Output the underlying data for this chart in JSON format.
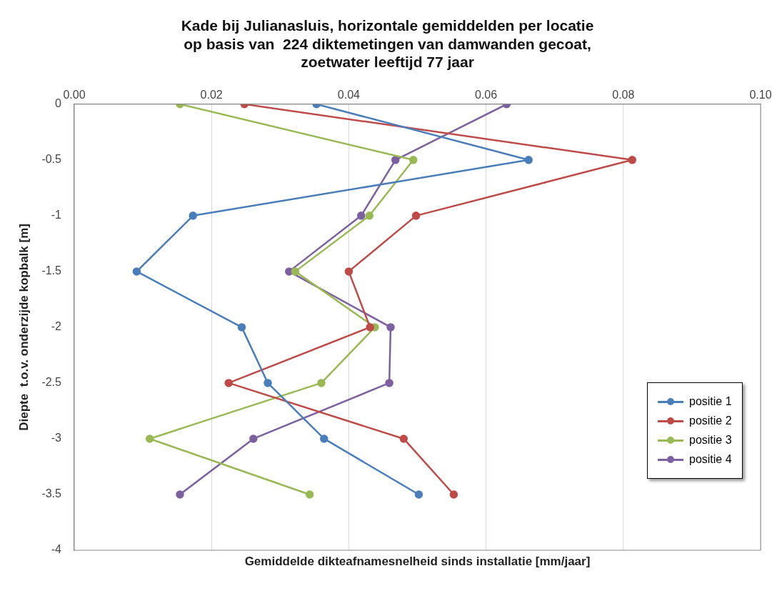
{
  "chart_data": {
    "type": "line",
    "title": "Kade bij Julianasluis, horizontale gemiddelden per locatie\nop basis van  224 diktemetingen van damwanden gecoat,\nzoetwater leeftijd 77 jaar",
    "xlabel": "Gemiddelde dikteafnamesnelheid sinds installatie [mm/jaar]",
    "ylabel": "Diepte  t.o.v. onderzijde kopbalk [m]",
    "series": [
      {
        "name": "positie 1",
        "color": "#4a7ebb",
        "x": [
          0.0353,
          0.0662,
          0.0173,
          0.0091,
          0.0244,
          0.0282,
          0.0364,
          0.0502
        ],
        "values": [
          0,
          -0.5,
          -1,
          -1.5,
          -2,
          -2.5,
          -3,
          -3.5
        ]
      },
      {
        "name": "positie 2",
        "color": "#be4b48",
        "x": [
          0.0248,
          0.0813,
          0.0498,
          0.04,
          0.0431,
          0.0225,
          0.048,
          0.0553
        ],
        "values": [
          0,
          -0.5,
          -1,
          -1.5,
          -2,
          -2.5,
          -3,
          -3.5
        ]
      },
      {
        "name": "positie 3",
        "color": "#98b954",
        "x": [
          0.0154,
          0.0494,
          0.043,
          0.0322,
          0.0438,
          0.036,
          0.011,
          0.0343
        ],
        "values": [
          0,
          -0.5,
          -1,
          -1.5,
          -2,
          -2.5,
          -3,
          -3.5
        ]
      },
      {
        "name": "positie 4",
        "color": "#7d60a0",
        "x": [
          0.063,
          0.0468,
          0.0418,
          0.0313,
          0.0461,
          0.0459,
          0.0261,
          0.0154
        ],
        "values": [
          0,
          -0.5,
          -1,
          -1.5,
          -2,
          -2.5,
          -3,
          -3.5
        ]
      }
    ],
    "xlim": [
      0,
      0.1
    ],
    "xticks": [
      {
        "value": 0,
        "label": "0.00"
      },
      {
        "value": 0.02,
        "label": "0.02"
      },
      {
        "value": 0.04,
        "label": "0.04"
      },
      {
        "value": 0.06,
        "label": "0.06"
      },
      {
        "value": 0.08,
        "label": "0.08"
      },
      {
        "value": 0.1,
        "label": "0.10"
      }
    ],
    "ylim": [
      -4,
      0
    ],
    "yticks": [
      0,
      -0.5,
      -1,
      -1.5,
      -2,
      -2.5,
      -3,
      -3.5,
      -4
    ],
    "grid": "x",
    "legend": "bottom right",
    "marker": "circle",
    "line_style": "solid"
  }
}
